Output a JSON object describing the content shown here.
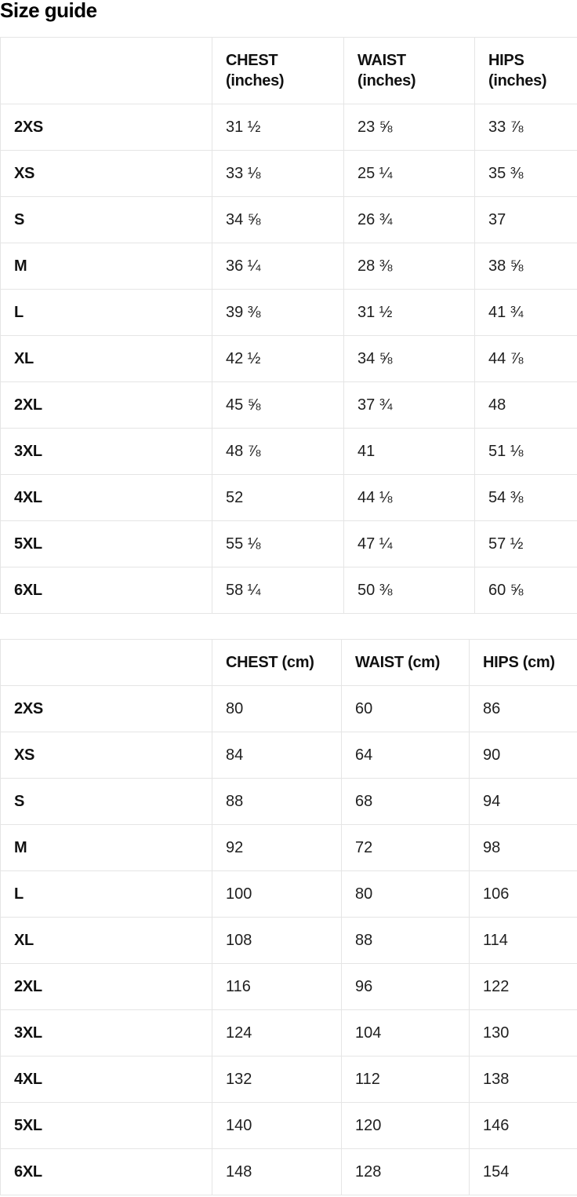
{
  "page": {
    "title": "Size guide"
  },
  "colors": {
    "border": "#e5e5e5",
    "heading_text": "#111111",
    "value_text": "#1f1f1f",
    "background": "#ffffff"
  },
  "tables": [
    {
      "unit": "inches",
      "columns": [
        "",
        "CHEST (inches)",
        "WAIST (inches)",
        "HIPS (inches)"
      ],
      "rows": [
        [
          "2XS",
          "31 ½",
          "23 ⅝",
          "33 ⅞"
        ],
        [
          "XS",
          "33 ⅛",
          "25 ¼",
          "35 ⅜"
        ],
        [
          "S",
          "34 ⅝",
          "26 ¾",
          "37"
        ],
        [
          "M",
          "36 ¼",
          "28 ⅜",
          "38 ⅝"
        ],
        [
          "L",
          "39 ⅜",
          "31 ½",
          "41 ¾"
        ],
        [
          "XL",
          "42 ½",
          "34 ⅝",
          "44 ⅞"
        ],
        [
          "2XL",
          "45 ⅝",
          "37 ¾",
          "48"
        ],
        [
          "3XL",
          "48 ⅞",
          "41",
          "51 ⅛"
        ],
        [
          "4XL",
          "52",
          "44 ⅛",
          "54 ⅜"
        ],
        [
          "5XL",
          "55 ⅛",
          "47 ¼",
          "57 ½"
        ],
        [
          "6XL",
          "58 ¼",
          "50 ⅜",
          "60 ⅝"
        ]
      ]
    },
    {
      "unit": "cm",
      "columns": [
        "",
        "CHEST (cm)",
        "WAIST (cm)",
        "HIPS (cm)"
      ],
      "rows": [
        [
          "2XS",
          "80",
          "60",
          "86"
        ],
        [
          "XS",
          "84",
          "64",
          "90"
        ],
        [
          "S",
          "88",
          "68",
          "94"
        ],
        [
          "M",
          "92",
          "72",
          "98"
        ],
        [
          "L",
          "100",
          "80",
          "106"
        ],
        [
          "XL",
          "108",
          "88",
          "114"
        ],
        [
          "2XL",
          "116",
          "96",
          "122"
        ],
        [
          "3XL",
          "124",
          "104",
          "130"
        ],
        [
          "4XL",
          "132",
          "112",
          "138"
        ],
        [
          "5XL",
          "140",
          "120",
          "146"
        ],
        [
          "6XL",
          "148",
          "128",
          "154"
        ]
      ]
    }
  ]
}
